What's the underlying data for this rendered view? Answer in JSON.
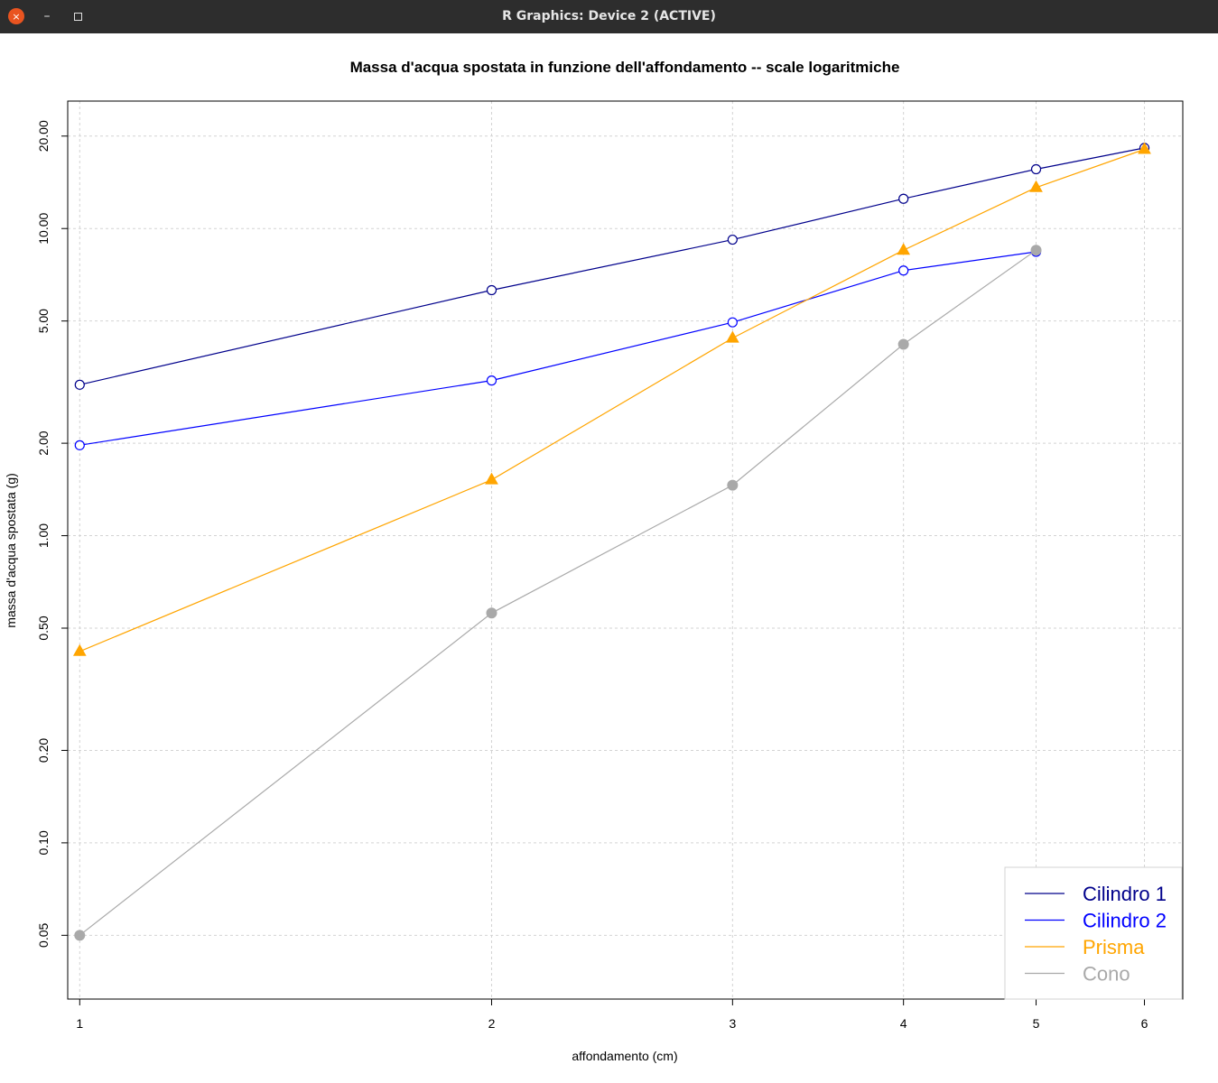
{
  "window": {
    "title": "R Graphics: Device 2 (ACTIVE)",
    "close_glyph": "×",
    "minimize_glyph": "–",
    "maximize_icon": "maximize-icon"
  },
  "chart_data": {
    "type": "line",
    "title": "Massa d'acqua spostata in funzione dell'affondamento -- scale logaritmiche",
    "xlabel": "affondamento (cm)",
    "ylabel": "massa d'acqua spostata (g)",
    "x_scale": "log",
    "y_scale": "log",
    "xlim": [
      0.98,
      6.4
    ],
    "ylim": [
      0.031,
      26
    ],
    "x_ticks": [
      1,
      2,
      3,
      4,
      5,
      6
    ],
    "x_tick_labels": [
      "1",
      "2",
      "3",
      "4",
      "5",
      "6"
    ],
    "y_ticks": [
      0.05,
      0.1,
      0.2,
      0.5,
      1,
      2,
      5,
      10,
      20
    ],
    "y_tick_labels": [
      "0.05",
      "0.10",
      "0.20",
      "0.50",
      "1.00",
      "2.00",
      "5.00",
      "10.00",
      "20.00"
    ],
    "grid": true,
    "legend_position": "bottom-right",
    "series": [
      {
        "name": "Cilindro 1",
        "color": "#00008b",
        "marker": "open-circle",
        "x": [
          1,
          2,
          3,
          4,
          5,
          6
        ],
        "y": [
          3.1,
          6.3,
          9.2,
          12.5,
          15.6,
          18.3
        ]
      },
      {
        "name": "Cilindro 2",
        "color": "#0000ff",
        "marker": "open-circle",
        "x": [
          1,
          2,
          3,
          4,
          5
        ],
        "y": [
          1.97,
          3.2,
          4.95,
          7.3,
          8.4
        ]
      },
      {
        "name": "Prisma",
        "color": "#ffa500",
        "marker": "filled-triangle",
        "x": [
          1,
          2,
          3,
          4,
          5,
          6
        ],
        "y": [
          0.42,
          1.52,
          4.4,
          8.5,
          13.6,
          18.1
        ]
      },
      {
        "name": "Cono",
        "color": "#a9a9a9",
        "marker": "filled-circle",
        "x": [
          1,
          2,
          3,
          4,
          5
        ],
        "y": [
          0.05,
          0.56,
          1.46,
          4.2,
          8.5
        ]
      }
    ]
  }
}
